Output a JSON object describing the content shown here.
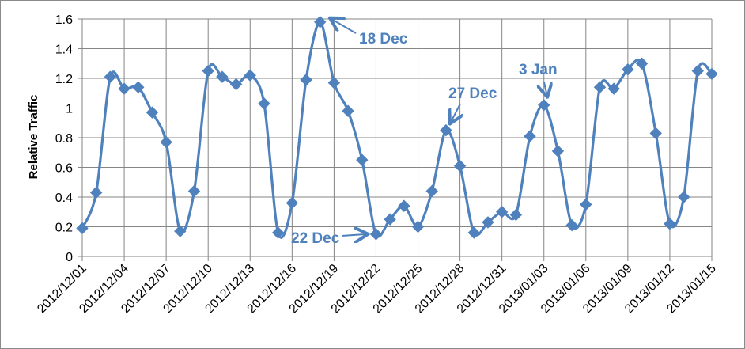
{
  "chart_data": {
    "type": "line",
    "title": "",
    "xlabel": "",
    "ylabel": "Relative Traffic",
    "ylim": [
      0,
      1.6
    ],
    "yticks": [
      "0",
      "0.2",
      "0.4",
      "0.6",
      "0.8",
      "1",
      "1.2",
      "1.4",
      "1.6"
    ],
    "xticks": [
      "2012/12/01",
      "2012/12/04",
      "2012/12/07",
      "2012/12/10",
      "2012/12/13",
      "2012/12/16",
      "2012/12/19",
      "2012/12/22",
      "2012/12/25",
      "2012/12/28",
      "2012/12/31",
      "2013/01/03",
      "2013/01/06",
      "2013/01/09",
      "2013/01/12",
      "2013/01/15"
    ],
    "grid": "horizontal and vertical",
    "series_color": "#4f81bd",
    "marker": "diamond",
    "smoothed": true,
    "series": [
      {
        "x": [
          "2012/12/01",
          "2012/12/02",
          "2012/12/03",
          "2012/12/04",
          "2012/12/05",
          "2012/12/06",
          "2012/12/07",
          "2012/12/08",
          "2012/12/09",
          "2012/12/10",
          "2012/12/11",
          "2012/12/12",
          "2012/12/13",
          "2012/12/14",
          "2012/12/15",
          "2012/12/16",
          "2012/12/17",
          "2012/12/18",
          "2012/12/19",
          "2012/12/20",
          "2012/12/21",
          "2012/12/22",
          "2012/12/23",
          "2012/12/24",
          "2012/12/25",
          "2012/12/26",
          "2012/12/27",
          "2012/12/28",
          "2012/12/29",
          "2012/12/30",
          "2012/12/31",
          "2013/01/01",
          "2013/01/02",
          "2013/01/03",
          "2013/01/04",
          "2013/01/05",
          "2013/01/06",
          "2013/01/07",
          "2013/01/08",
          "2013/01/09",
          "2013/01/10",
          "2013/01/11",
          "2013/01/12",
          "2013/01/13",
          "2013/01/14",
          "2013/01/15"
        ],
        "values": [
          0.19,
          0.43,
          1.21,
          1.13,
          1.14,
          0.97,
          0.77,
          0.17,
          0.44,
          1.25,
          1.21,
          1.16,
          1.22,
          1.03,
          0.16,
          0.36,
          1.19,
          1.58,
          1.17,
          0.98,
          0.65,
          0.15,
          0.25,
          0.34,
          0.2,
          0.44,
          0.85,
          0.61,
          0.16,
          0.23,
          0.3,
          0.28,
          0.81,
          1.02,
          0.71,
          0.21,
          0.35,
          1.14,
          1.13,
          1.26,
          1.3,
          0.83,
          0.22,
          0.4,
          1.25,
          1.23
        ]
      }
    ],
    "annotations": [
      {
        "text": "18 Dec",
        "x": "2012/12/18",
        "y": 1.58
      },
      {
        "text": "22 Dec",
        "x": "2012/12/22",
        "y": 0.15
      },
      {
        "text": "27 Dec",
        "x": "2012/12/27",
        "y": 0.85
      },
      {
        "text": "3 Jan",
        "x": "2013/01/03",
        "y": 1.02
      }
    ]
  }
}
